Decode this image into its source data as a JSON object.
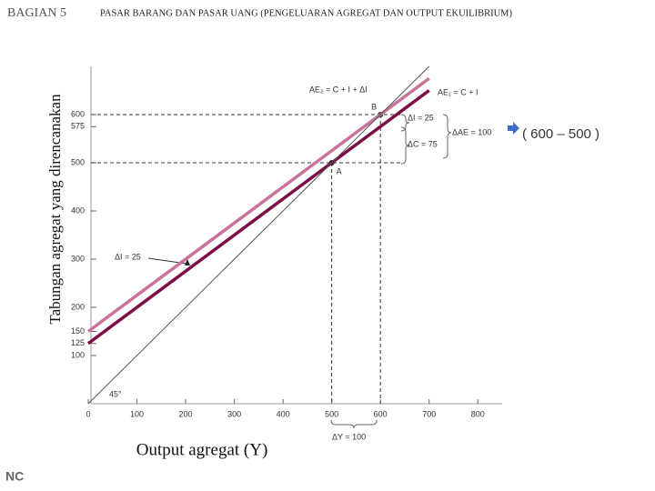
{
  "header": "BAGIAN 5",
  "footer": "NC",
  "note": "( 600 – 500 )",
  "chart_data": {
    "type": "line",
    "title": "PASAR BARANG DAN PASAR UANG (PENGELUARAN AGREGAT DAN OUTPUT EKUILIBRIUM)",
    "x_label": "Output agregat  (Y)",
    "y_label": "Tabungan agregat yang direncanakan",
    "x": [
      0,
      500,
      600,
      700
    ],
    "series": [
      {
        "name": "AE₂ = C + I + ΔI",
        "color": "#c9729b",
        "values": [
          150,
          525,
          600,
          675
        ]
      },
      {
        "name": "AE₁ = C + I",
        "color": "#7b0f45",
        "values": [
          125,
          500,
          575,
          650
        ]
      },
      {
        "name": "45°",
        "color": "#555555",
        "values": [
          0,
          500,
          600,
          700
        ]
      }
    ],
    "points": [
      "A",
      "B"
    ],
    "annotations": [
      "ΔI = 25",
      "ΔC = 75",
      "ΔAE = 100",
      "ΔI = 25",
      "ΔY = 100"
    ],
    "xlim": [
      0,
      850
    ],
    "ylim": [
      0,
      700
    ],
    "xticks": [
      0,
      100,
      200,
      300,
      400,
      500,
      600,
      700,
      800
    ],
    "yticks": [
      100,
      125,
      150,
      200,
      300,
      400,
      500,
      575,
      600
    ]
  }
}
